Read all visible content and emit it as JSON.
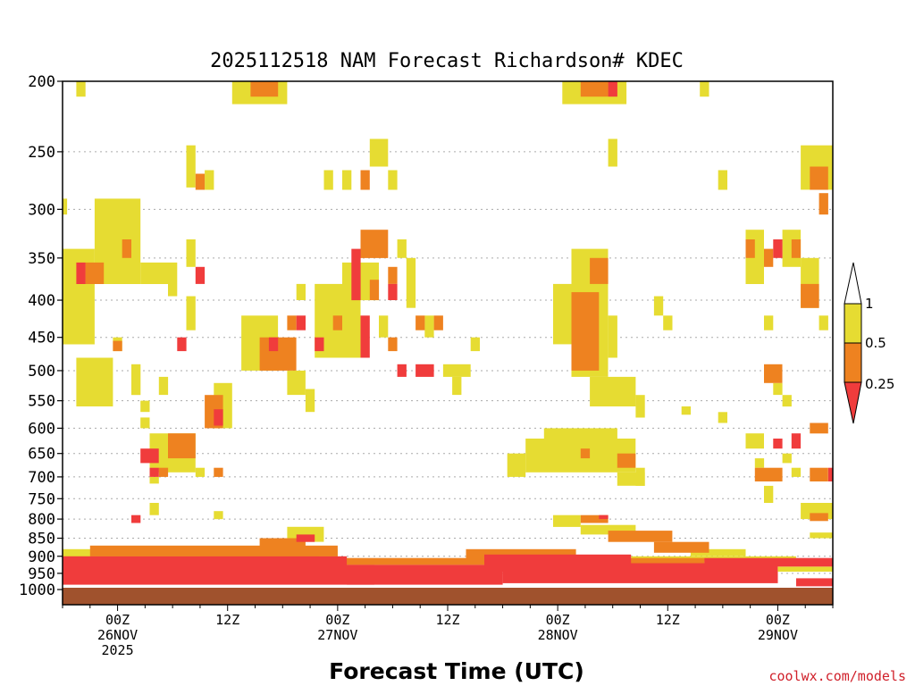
{
  "chart_data": {
    "type": "heatmap",
    "title": "2025112518 NAM Forecast Richardson# KDEC",
    "xlabel": "Forecast Time (UTC)",
    "ylabel": "",
    "credit": "coolwx.com/models",
    "y_scale": "pressure (hPa), reversed, log-like",
    "y_ticks": [
      "200",
      "250",
      "300",
      "350",
      "400",
      "450",
      "500",
      "550",
      "600",
      "650",
      "700",
      "750",
      "800",
      "850",
      "900",
      "950",
      "1000"
    ],
    "x_ticks": [
      {
        "hour": 6,
        "label1": "00Z",
        "label2": "26NOV",
        "label3": "2025"
      },
      {
        "hour": 18,
        "label1": "12Z",
        "label2": "",
        "label3": ""
      },
      {
        "hour": 30,
        "label1": "00Z",
        "label2": "27NOV",
        "label3": ""
      },
      {
        "hour": 42,
        "label1": "12Z",
        "label2": "",
        "label3": ""
      },
      {
        "hour": 54,
        "label1": "00Z",
        "label2": "28NOV",
        "label3": ""
      },
      {
        "hour": 66,
        "label1": "12Z",
        "label2": "",
        "label3": ""
      },
      {
        "hour": 78,
        "label1": "00Z",
        "label2": "29NOV",
        "label3": ""
      }
    ],
    "x_range_hours": [
      0,
      84
    ],
    "levels": [
      "1",
      "0.5",
      "0.25"
    ],
    "colors": {
      "ri_lt_025": "#f03c3c",
      "ri_025_05": "#ee8220",
      "ri_05_1": "#e6dc32",
      "ground": "#a0522d",
      "grid": "#aaaaaa"
    },
    "grid": "horizontal dotted at pressure ticks",
    "legend_position": "right",
    "regions": [
      {
        "c": "yellow",
        "t0": 1.5,
        "t1": 2.5,
        "p0": 200,
        "p1": 210
      },
      {
        "c": "yellow",
        "t0": 18.5,
        "t1": 24.5,
        "p0": 200,
        "p1": 215
      },
      {
        "c": "orange",
        "t0": 20.5,
        "t1": 23.5,
        "p0": 200,
        "p1": 210
      },
      {
        "c": "yellow",
        "t0": 54.5,
        "t1": 61.5,
        "p0": 200,
        "p1": 215
      },
      {
        "c": "orange",
        "t0": 56.5,
        "t1": 59.5,
        "p0": 200,
        "p1": 210
      },
      {
        "c": "red",
        "t0": 59.5,
        "t1": 60.5,
        "p0": 200,
        "p1": 210
      },
      {
        "c": "yellow",
        "t0": 69.5,
        "t1": 70.5,
        "p0": 200,
        "p1": 210
      },
      {
        "c": "yellow",
        "t0": 13.5,
        "t1": 14.5,
        "p0": 245,
        "p1": 280
      },
      {
        "c": "orange",
        "t0": 14.5,
        "t1": 15.5,
        "p0": 268,
        "p1": 282
      },
      {
        "c": "yellow",
        "t0": 15.5,
        "t1": 16.5,
        "p0": 265,
        "p1": 282
      },
      {
        "c": "yellow",
        "t0": 28.5,
        "t1": 29.5,
        "p0": 265,
        "p1": 282
      },
      {
        "c": "yellow",
        "t0": 30.5,
        "t1": 31.5,
        "p0": 265,
        "p1": 282
      },
      {
        "c": "orange",
        "t0": 32.5,
        "t1": 33.5,
        "p0": 265,
        "p1": 282
      },
      {
        "c": "yellow",
        "t0": 33.5,
        "t1": 34.5,
        "p0": 240,
        "p1": 262
      },
      {
        "c": "yellow",
        "t0": 34.5,
        "t1": 35.5,
        "p0": 240,
        "p1": 262
      },
      {
        "c": "yellow",
        "t0": 35.5,
        "t1": 36.5,
        "p0": 265,
        "p1": 282
      },
      {
        "c": "yellow",
        "t0": 59.5,
        "t1": 60.5,
        "p0": 240,
        "p1": 262
      },
      {
        "c": "yellow",
        "t0": 71.5,
        "t1": 72.5,
        "p0": 265,
        "p1": 282
      },
      {
        "c": "yellow",
        "t0": 80.5,
        "t1": 84,
        "p0": 245,
        "p1": 282
      },
      {
        "c": "orange",
        "t0": 81.5,
        "t1": 83.5,
        "p0": 262,
        "p1": 282
      },
      {
        "c": "orange",
        "t0": 82.5,
        "t1": 83.5,
        "p0": 285,
        "p1": 305
      },
      {
        "c": "yellow",
        "t0": 0,
        "t1": 0.5,
        "p0": 290,
        "p1": 305
      },
      {
        "c": "yellow",
        "t0": 3.5,
        "t1": 8.5,
        "p0": 290,
        "p1": 380
      },
      {
        "c": "orange",
        "t0": 6.5,
        "t1": 7.5,
        "p0": 330,
        "p1": 350
      },
      {
        "c": "yellow",
        "t0": 0,
        "t1": 3.5,
        "p0": 340,
        "p1": 460
      },
      {
        "c": "red",
        "t0": 1.5,
        "t1": 2.5,
        "p0": 355,
        "p1": 380
      },
      {
        "c": "orange",
        "t0": 2.5,
        "t1": 4.5,
        "p0": 355,
        "p1": 380
      },
      {
        "c": "yellow",
        "t0": 8.5,
        "t1": 11.5,
        "p0": 355,
        "p1": 380
      },
      {
        "c": "yellow",
        "t0": 11.5,
        "t1": 12.5,
        "p0": 355,
        "p1": 395
      },
      {
        "c": "yellow",
        "t0": 13.5,
        "t1": 14.5,
        "p0": 330,
        "p1": 360
      },
      {
        "c": "red",
        "t0": 14.5,
        "t1": 15.5,
        "p0": 360,
        "p1": 380
      },
      {
        "c": "yellow",
        "t0": 13.5,
        "t1": 14.5,
        "p0": 395,
        "p1": 440
      },
      {
        "c": "red",
        "t0": 12.5,
        "t1": 13.5,
        "p0": 450,
        "p1": 470
      },
      {
        "c": "yellow",
        "t0": 5.5,
        "t1": 6.5,
        "p0": 450,
        "p1": 470
      },
      {
        "c": "orange",
        "t0": 5.5,
        "t1": 6.5,
        "p0": 455,
        "p1": 470
      },
      {
        "c": "yellow",
        "t0": 1.5,
        "t1": 5.5,
        "p0": 480,
        "p1": 560
      },
      {
        "c": "yellow",
        "t0": 7.5,
        "t1": 8.5,
        "p0": 490,
        "p1": 540
      },
      {
        "c": "yellow",
        "t0": 10.5,
        "t1": 11.5,
        "p0": 510,
        "p1": 540
      },
      {
        "c": "yellow",
        "t0": 8.5,
        "t1": 9.5,
        "p0": 550,
        "p1": 570
      },
      {
        "c": "yellow",
        "t0": 16.5,
        "t1": 18.5,
        "p0": 520,
        "p1": 600
      },
      {
        "c": "orange",
        "t0": 15.5,
        "t1": 17.5,
        "p0": 540,
        "p1": 600
      },
      {
        "c": "red",
        "t0": 16.5,
        "t1": 17.5,
        "p0": 565,
        "p1": 595
      },
      {
        "c": "yellow",
        "t0": 19.5,
        "t1": 23.5,
        "p0": 420,
        "p1": 500
      },
      {
        "c": "orange",
        "t0": 21.5,
        "t1": 25.5,
        "p0": 450,
        "p1": 500
      },
      {
        "c": "red",
        "t0": 22.5,
        "t1": 23.5,
        "p0": 450,
        "p1": 470
      },
      {
        "c": "yellow",
        "t0": 24.5,
        "t1": 26.5,
        "p0": 500,
        "p1": 540
      },
      {
        "c": "yellow",
        "t0": 26.5,
        "t1": 27.5,
        "p0": 530,
        "p1": 570
      },
      {
        "c": "red",
        "t0": 25.5,
        "t1": 26.5,
        "p0": 420,
        "p1": 440
      },
      {
        "c": "orange",
        "t0": 24.5,
        "t1": 25.5,
        "p0": 420,
        "p1": 440
      },
      {
        "c": "yellow",
        "t0": 25.5,
        "t1": 26.5,
        "p0": 380,
        "p1": 400
      },
      {
        "c": "yellow",
        "t0": 27.5,
        "t1": 32.5,
        "p0": 380,
        "p1": 480
      },
      {
        "c": "red",
        "t0": 27.5,
        "t1": 28.5,
        "p0": 450,
        "p1": 470
      },
      {
        "c": "orange",
        "t0": 29.5,
        "t1": 30.5,
        "p0": 420,
        "p1": 440
      },
      {
        "c": "yellow",
        "t0": 30.5,
        "t1": 34.5,
        "p0": 355,
        "p1": 400
      },
      {
        "c": "red",
        "t0": 31.5,
        "t1": 32.5,
        "p0": 340,
        "p1": 400
      },
      {
        "c": "red",
        "t0": 32.5,
        "t1": 33.5,
        "p0": 420,
        "p1": 480
      },
      {
        "c": "orange",
        "t0": 32.5,
        "t1": 35.5,
        "p0": 320,
        "p1": 350
      },
      {
        "c": "orange",
        "t0": 33.5,
        "t1": 34.5,
        "p0": 375,
        "p1": 400
      },
      {
        "c": "red",
        "t0": 35.5,
        "t1": 36.5,
        "p0": 380,
        "p1": 400
      },
      {
        "c": "orange",
        "t0": 35.5,
        "t1": 36.5,
        "p0": 360,
        "p1": 380
      },
      {
        "c": "yellow",
        "t0": 36.5,
        "t1": 37.5,
        "p0": 330,
        "p1": 350
      },
      {
        "c": "yellow",
        "t0": 37.5,
        "t1": 38.5,
        "p0": 350,
        "p1": 410
      },
      {
        "c": "orange",
        "t0": 38.5,
        "t1": 39.5,
        "p0": 420,
        "p1": 440
      },
      {
        "c": "yellow",
        "t0": 39.5,
        "t1": 40.5,
        "p0": 420,
        "p1": 450
      },
      {
        "c": "orange",
        "t0": 40.5,
        "t1": 41.5,
        "p0": 420,
        "p1": 440
      },
      {
        "c": "yellow",
        "t0": 34.5,
        "t1": 35.5,
        "p0": 420,
        "p1": 450
      },
      {
        "c": "orange",
        "t0": 35.5,
        "t1": 36.5,
        "p0": 450,
        "p1": 470
      },
      {
        "c": "red",
        "t0": 36.5,
        "t1": 37.5,
        "p0": 490,
        "p1": 510
      },
      {
        "c": "red",
        "t0": 38.5,
        "t1": 40.5,
        "p0": 490,
        "p1": 510
      },
      {
        "c": "yellow",
        "t0": 41.5,
        "t1": 44.5,
        "p0": 490,
        "p1": 510
      },
      {
        "c": "yellow",
        "t0": 44.5,
        "t1": 45.5,
        "p0": 450,
        "p1": 470
      },
      {
        "c": "yellow",
        "t0": 42.5,
        "t1": 43.5,
        "p0": 510,
        "p1": 540
      },
      {
        "c": "yellow",
        "t0": 53.5,
        "t1": 55.5,
        "p0": 380,
        "p1": 460
      },
      {
        "c": "yellow",
        "t0": 55.5,
        "t1": 59.5,
        "p0": 340,
        "p1": 510
      },
      {
        "c": "orange",
        "t0": 55.5,
        "t1": 58.5,
        "p0": 390,
        "p1": 500
      },
      {
        "c": "orange",
        "t0": 57.5,
        "t1": 59.5,
        "p0": 350,
        "p1": 380
      },
      {
        "c": "yellow",
        "t0": 59.5,
        "t1": 60.5,
        "p0": 420,
        "p1": 480
      },
      {
        "c": "yellow",
        "t0": 57.5,
        "t1": 62.5,
        "p0": 510,
        "p1": 560
      },
      {
        "c": "yellow",
        "t0": 62.5,
        "t1": 63.5,
        "p0": 540,
        "p1": 580
      },
      {
        "c": "yellow",
        "t0": 64.5,
        "t1": 65.5,
        "p0": 395,
        "p1": 420
      },
      {
        "c": "yellow",
        "t0": 65.5,
        "t1": 66.5,
        "p0": 420,
        "p1": 440
      },
      {
        "c": "yellow",
        "t0": 71.5,
        "t1": 72.5,
        "p0": 570,
        "p1": 590
      },
      {
        "c": "yellow",
        "t0": 74.5,
        "t1": 76.5,
        "p0": 320,
        "p1": 380
      },
      {
        "c": "orange",
        "t0": 74.5,
        "t1": 75.5,
        "p0": 330,
        "p1": 350
      },
      {
        "c": "orange",
        "t0": 76.5,
        "t1": 77.5,
        "p0": 340,
        "p1": 360
      },
      {
        "c": "red",
        "t0": 77.5,
        "t1": 78.5,
        "p0": 330,
        "p1": 350
      },
      {
        "c": "yellow",
        "t0": 78.5,
        "t1": 80.5,
        "p0": 320,
        "p1": 360
      },
      {
        "c": "orange",
        "t0": 79.5,
        "t1": 80.5,
        "p0": 330,
        "p1": 350
      },
      {
        "c": "yellow",
        "t0": 80.5,
        "t1": 82.5,
        "p0": 350,
        "p1": 410
      },
      {
        "c": "orange",
        "t0": 80.5,
        "t1": 82.5,
        "p0": 380,
        "p1": 410
      },
      {
        "c": "yellow",
        "t0": 82.5,
        "t1": 83.5,
        "p0": 420,
        "p1": 440
      },
      {
        "c": "yellow",
        "t0": 76.5,
        "t1": 77.5,
        "p0": 420,
        "p1": 440
      },
      {
        "c": "orange",
        "t0": 76.5,
        "t1": 78.5,
        "p0": 490,
        "p1": 520
      },
      {
        "c": "yellow",
        "t0": 77.5,
        "t1": 78.5,
        "p0": 520,
        "p1": 540
      },
      {
        "c": "yellow",
        "t0": 78.5,
        "t1": 79.5,
        "p0": 540,
        "p1": 560
      },
      {
        "c": "yellow",
        "t0": 67.5,
        "t1": 68.5,
        "p0": 560,
        "p1": 575
      },
      {
        "c": "yellow",
        "t0": 8.5,
        "t1": 9.5,
        "p0": 580,
        "p1": 600
      },
      {
        "c": "yellow",
        "t0": 9.5,
        "t1": 14.5,
        "p0": 610,
        "p1": 690
      },
      {
        "c": "orange",
        "t0": 11.5,
        "t1": 14.5,
        "p0": 610,
        "p1": 660
      },
      {
        "c": "red",
        "t0": 8.5,
        "t1": 10.5,
        "p0": 640,
        "p1": 670
      },
      {
        "c": "red",
        "t0": 9.5,
        "t1": 10.5,
        "p0": 680,
        "p1": 700
      },
      {
        "c": "orange",
        "t0": 10.5,
        "t1": 11.5,
        "p0": 680,
        "p1": 700
      },
      {
        "c": "yellow",
        "t0": 9.5,
        "t1": 10.5,
        "p0": 700,
        "p1": 715
      },
      {
        "c": "yellow",
        "t0": 14.5,
        "t1": 15.5,
        "p0": 680,
        "p1": 700
      },
      {
        "c": "orange",
        "t0": 16.5,
        "t1": 17.5,
        "p0": 680,
        "p1": 700
      },
      {
        "c": "yellow",
        "t0": 48.5,
        "t1": 50.5,
        "p0": 650,
        "p1": 700
      },
      {
        "c": "yellow",
        "t0": 50.5,
        "t1": 62.5,
        "p0": 620,
        "p1": 690
      },
      {
        "c": "yellow",
        "t0": 52.5,
        "t1": 60.5,
        "p0": 600,
        "p1": 640
      },
      {
        "c": "orange",
        "t0": 56.5,
        "t1": 57.5,
        "p0": 640,
        "p1": 660
      },
      {
        "c": "orange",
        "t0": 60.5,
        "t1": 62.5,
        "p0": 650,
        "p1": 680
      },
      {
        "c": "yellow",
        "t0": 62.5,
        "t1": 63.5,
        "p0": 680,
        "p1": 720
      },
      {
        "c": "yellow",
        "t0": 60.5,
        "t1": 63.5,
        "p0": 690,
        "p1": 720
      },
      {
        "c": "yellow",
        "t0": 74.5,
        "t1": 76.5,
        "p0": 610,
        "p1": 640
      },
      {
        "c": "yellow",
        "t0": 75.5,
        "t1": 76.5,
        "p0": 660,
        "p1": 680
      },
      {
        "c": "orange",
        "t0": 75.5,
        "t1": 78.5,
        "p0": 680,
        "p1": 710
      },
      {
        "c": "red",
        "t0": 77.5,
        "t1": 78.5,
        "p0": 620,
        "p1": 640
      },
      {
        "c": "red",
        "t0": 79.5,
        "t1": 80.5,
        "p0": 610,
        "p1": 640
      },
      {
        "c": "yellow",
        "t0": 78.5,
        "t1": 79.5,
        "p0": 650,
        "p1": 670
      },
      {
        "c": "yellow",
        "t0": 79.5,
        "t1": 80.5,
        "p0": 680,
        "p1": 700
      },
      {
        "c": "orange",
        "t0": 81.5,
        "t1": 83.5,
        "p0": 680,
        "p1": 710
      },
      {
        "c": "red",
        "t0": 83.5,
        "t1": 84,
        "p0": 680,
        "p1": 710
      },
      {
        "c": "yellow",
        "t0": 76.5,
        "t1": 77.5,
        "p0": 720,
        "p1": 760
      },
      {
        "c": "orange",
        "t0": 81.5,
        "t1": 83.5,
        "p0": 590,
        "p1": 610
      },
      {
        "c": "yellow",
        "t0": 80.5,
        "t1": 84,
        "p0": 760,
        "p1": 800
      },
      {
        "c": "orange",
        "t0": 81.5,
        "t1": 83.5,
        "p0": 785,
        "p1": 805
      },
      {
        "c": "yellow",
        "t0": 9.5,
        "t1": 10.5,
        "p0": 760,
        "p1": 790
      },
      {
        "c": "red",
        "t0": 7.5,
        "t1": 8.5,
        "p0": 790,
        "p1": 810
      },
      {
        "c": "yellow",
        "t0": 16.5,
        "t1": 17.5,
        "p0": 780,
        "p1": 800
      },
      {
        "c": "yellow",
        "t0": 24.5,
        "t1": 28.5,
        "p0": 820,
        "p1": 860
      },
      {
        "c": "red",
        "t0": 25.5,
        "t1": 27.5,
        "p0": 840,
        "p1": 860
      },
      {
        "c": "orange",
        "t0": 21.5,
        "t1": 26.5,
        "p0": 850,
        "p1": 880
      },
      {
        "c": "yellow",
        "t0": 53.5,
        "t1": 56.5,
        "p0": 790,
        "p1": 820
      },
      {
        "c": "orange",
        "t0": 56.5,
        "t1": 59.5,
        "p0": 790,
        "p1": 810
      },
      {
        "c": "red",
        "t0": 58.5,
        "t1": 59.5,
        "p0": 790,
        "p1": 800
      },
      {
        "c": "yellow",
        "t0": 56.5,
        "t1": 62.5,
        "p0": 815,
        "p1": 840
      },
      {
        "c": "orange",
        "t0": 59.5,
        "t1": 66.5,
        "p0": 830,
        "p1": 860
      },
      {
        "c": "orange",
        "t0": 64.5,
        "t1": 70.5,
        "p0": 860,
        "p1": 890
      },
      {
        "c": "yellow",
        "t0": 68.5,
        "t1": 74.5,
        "p0": 880,
        "p1": 900
      },
      {
        "c": "yellow",
        "t0": 81.5,
        "t1": 84,
        "p0": 835,
        "p1": 850
      },
      {
        "c": "yellow",
        "t0": 0,
        "t1": 30,
        "p0": 880,
        "p1": 905
      },
      {
        "c": "orange",
        "t0": 3,
        "t1": 30,
        "p0": 870,
        "p1": 900
      },
      {
        "c": "red",
        "t0": 0,
        "t1": 31,
        "p0": 900,
        "p1": 940
      },
      {
        "c": "orange",
        "t0": 15,
        "t1": 28,
        "p0": 885,
        "p1": 900
      },
      {
        "c": "red",
        "t0": 0,
        "t1": 34,
        "p0": 925,
        "p1": 985
      },
      {
        "c": "red",
        "t0": 31,
        "t1": 48,
        "p0": 925,
        "p1": 985
      },
      {
        "c": "orange",
        "t0": 30,
        "t1": 48,
        "p0": 905,
        "p1": 925
      },
      {
        "c": "red",
        "t0": 48,
        "t1": 78,
        "p0": 945,
        "p1": 980
      },
      {
        "c": "orange",
        "t0": 44,
        "t1": 56,
        "p0": 880,
        "p1": 910
      },
      {
        "c": "red",
        "t0": 46,
        "t1": 62,
        "p0": 895,
        "p1": 945
      },
      {
        "c": "orange",
        "t0": 56,
        "t1": 70,
        "p0": 905,
        "p1": 930
      },
      {
        "c": "red",
        "t0": 60,
        "t1": 78,
        "p0": 920,
        "p1": 965
      },
      {
        "c": "yellow",
        "t0": 62,
        "t1": 80,
        "p0": 900,
        "p1": 915
      },
      {
        "c": "red",
        "t0": 70,
        "t1": 84,
        "p0": 905,
        "p1": 930
      },
      {
        "c": "yellow",
        "t0": 78,
        "t1": 84,
        "p0": 930,
        "p1": 945
      },
      {
        "c": "red",
        "t0": 80,
        "t1": 84,
        "p0": 965,
        "p1": 990
      }
    ]
  }
}
